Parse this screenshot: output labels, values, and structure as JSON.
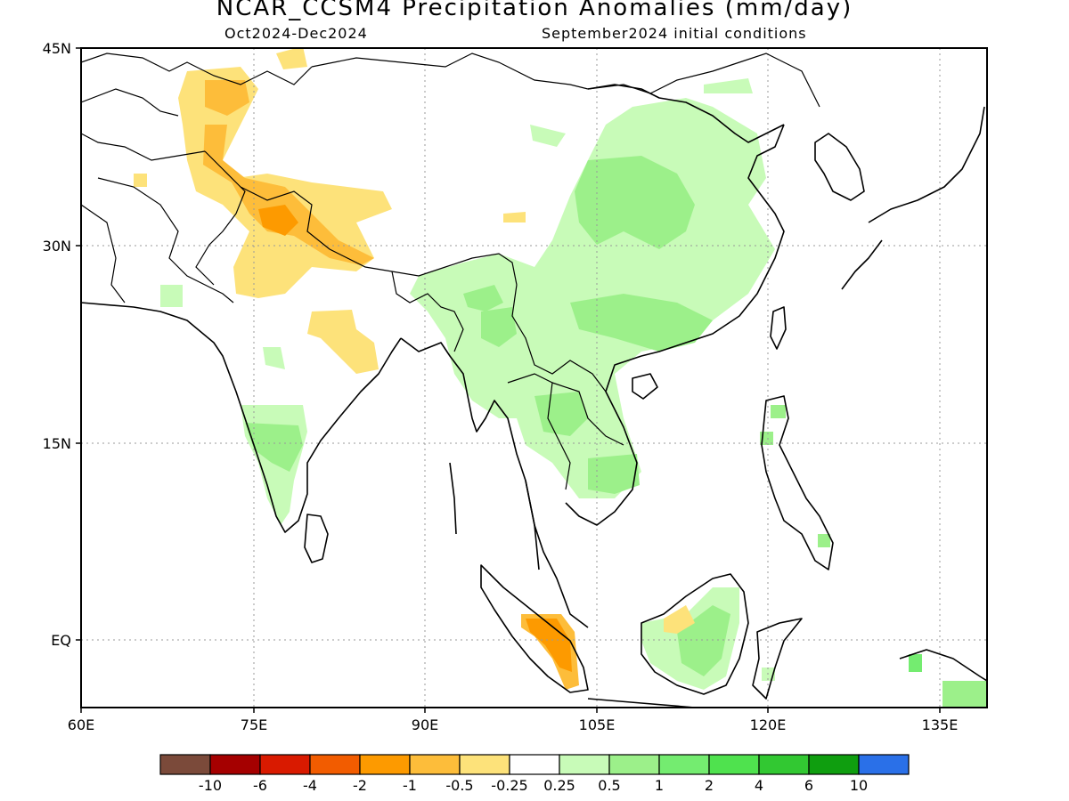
{
  "title": "NCAR_CCSM4 Precipitation Anomalies (mm/day)",
  "subtitle_left": "Oct2024-Dec2024",
  "subtitle_right": "September2024 initial conditions",
  "map": {
    "lon_range": [
      60,
      140
    ],
    "lat_range": [
      -6,
      45
    ],
    "x_ticks": [
      {
        "lon": 60,
        "label": "60E"
      },
      {
        "lon": 75,
        "label": "75E"
      },
      {
        "lon": 90,
        "label": "90E"
      },
      {
        "lon": 105,
        "label": "105E"
      },
      {
        "lon": 120,
        "label": "120E"
      },
      {
        "lon": 135,
        "label": "135E"
      }
    ],
    "y_ticks": [
      {
        "lat": 45,
        "label": "45N"
      },
      {
        "lat": 30,
        "label": "30N"
      },
      {
        "lat": 15,
        "label": "15N"
      },
      {
        "lat": 0,
        "label": "EQ"
      }
    ],
    "grid": "dotted, every 15 degrees"
  },
  "colorbar": {
    "colors": [
      "#7b4a3a",
      "#a50000",
      "#d91a00",
      "#f25c00",
      "#fd9a00",
      "#fdbd3a",
      "#fde27a",
      "#ffffff",
      "#c8fbb8",
      "#9cf08a",
      "#74ec70",
      "#4fe24e",
      "#32c832",
      "#0f9e0f",
      "#2a70e8"
    ],
    "labels": [
      "-10",
      "-6",
      "-4",
      "-2",
      "-1",
      "-0.5",
      "-0.25",
      "0.25",
      "0.5",
      "1",
      "2",
      "4",
      "6",
      "10"
    ]
  },
  "anomaly_regions": [
    {
      "name": "north-china-wet",
      "class": "0.25 to 0.5",
      "color": "#c8fbb8"
    },
    {
      "name": "central-china-wet",
      "class": "0.5 to 1",
      "color": "#9cf08a"
    },
    {
      "name": "himalaya-dry",
      "class": "-1 to -0.5",
      "color": "#fdbd3a"
    },
    {
      "name": "pakistan-dry",
      "class": "-0.5 to -0.25",
      "color": "#fde27a"
    },
    {
      "name": "sumatra-dry",
      "class": "-2 to -1",
      "color": "#fd9a00"
    },
    {
      "name": "borneo-wet",
      "class": "0.5 to 1",
      "color": "#9cf08a"
    },
    {
      "name": "south-india-wet",
      "class": "0.5 to 1",
      "color": "#9cf08a"
    },
    {
      "name": "indochina-wet",
      "class": "0.25 to 0.5",
      "color": "#c8fbb8"
    }
  ]
}
